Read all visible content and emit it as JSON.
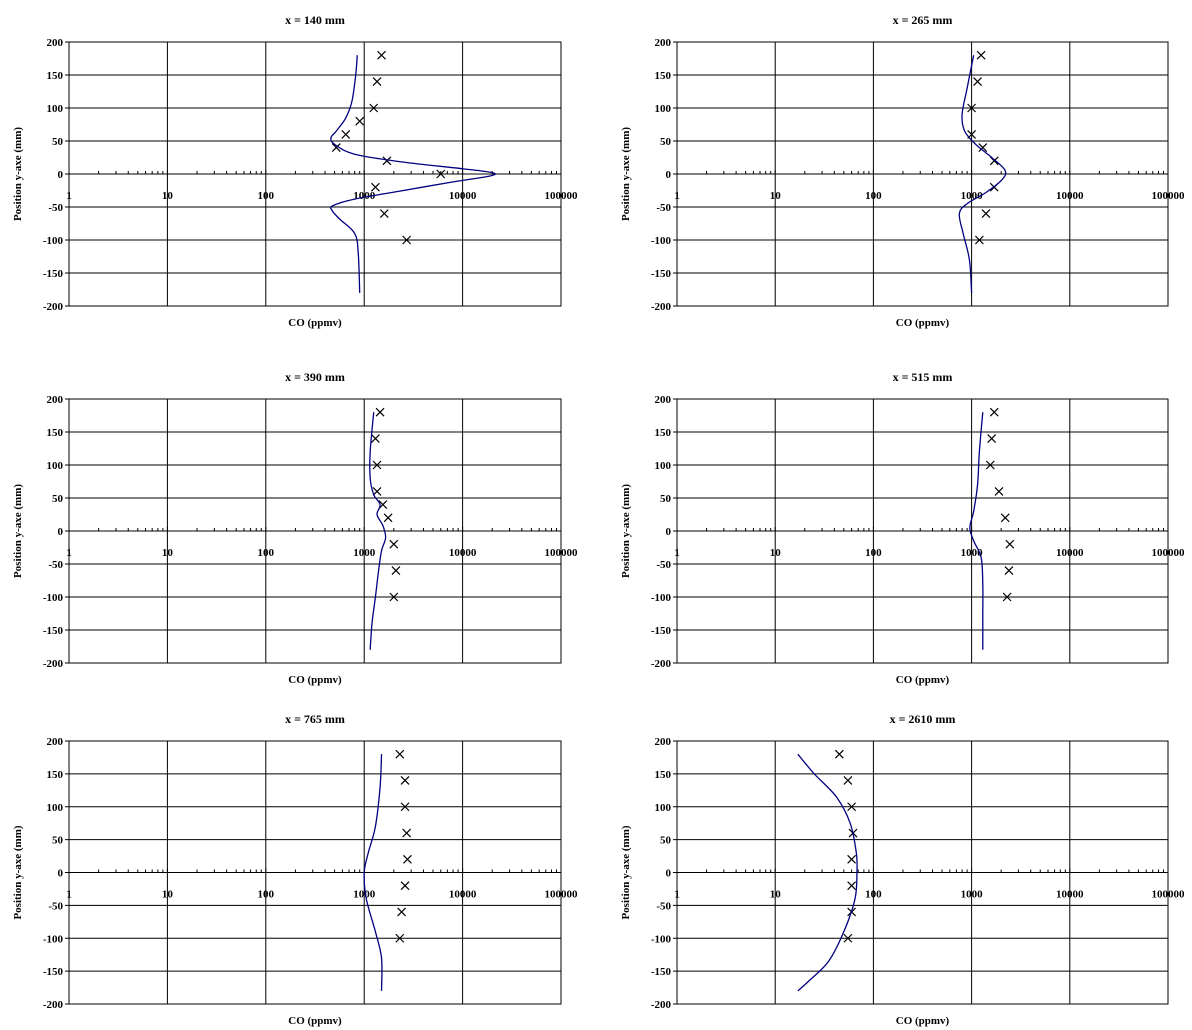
{
  "figure": {
    "xlabel": "CO (ppmv)",
    "ylabel": "Position y-axe (mm)",
    "colors": {
      "model_line": "#000080",
      "marker": "#000000",
      "grid": "#000000"
    }
  },
  "chart_data": [
    {
      "type": "scatter",
      "title": "x = 140 mm",
      "xlabel": "CO (ppmv)",
      "ylabel": "Position y-axe (mm)",
      "xscale": "log",
      "xlim": [
        1,
        100000
      ],
      "ylim": [
        -200,
        200
      ],
      "x_ticks": [
        "1",
        "10",
        "100",
        "1000",
        "10000",
        "100000"
      ],
      "y_ticks": [
        "200",
        "150",
        "100",
        "50",
        "0",
        "-50",
        "-100",
        "-150",
        "-200"
      ],
      "grid": true,
      "series": [
        {
          "mark": "x",
          "points": [
            [
              1500,
              180
            ],
            [
              1350,
              140
            ],
            [
              1250,
              100
            ],
            [
              900,
              80
            ],
            [
              650,
              60
            ],
            [
              520,
              40
            ],
            [
              1700,
              20
            ],
            [
              6000,
              0
            ],
            [
              1300,
              -20
            ],
            [
              1600,
              -60
            ],
            [
              2700,
              -100
            ]
          ]
        },
        {
          "mark": "line",
          "points": [
            [
              850,
              180
            ],
            [
              820,
              150
            ],
            [
              750,
              110
            ],
            [
              650,
              85
            ],
            [
              520,
              65
            ],
            [
              460,
              55
            ],
            [
              500,
              45
            ],
            [
              800,
              30
            ],
            [
              2500,
              18
            ],
            [
              10000,
              8
            ],
            [
              20000,
              2
            ],
            [
              19000,
              -3
            ],
            [
              8000,
              -12
            ],
            [
              2500,
              -25
            ],
            [
              800,
              -38
            ],
            [
              480,
              -48
            ],
            [
              470,
              -55
            ],
            [
              560,
              -68
            ],
            [
              800,
              -90
            ],
            [
              870,
              -120
            ],
            [
              900,
              -180
            ]
          ]
        }
      ]
    },
    {
      "type": "scatter",
      "title": "x = 265 mm",
      "xlabel": "CO (ppmv)",
      "ylabel": "Position y-axe (mm)",
      "xscale": "log",
      "xlim": [
        1,
        100000
      ],
      "ylim": [
        -200,
        200
      ],
      "x_ticks": [
        "1",
        "10",
        "100",
        "1000",
        "10000",
        "100000"
      ],
      "y_ticks": [
        "200",
        "150",
        "100",
        "50",
        "0",
        "-50",
        "-100",
        "-150",
        "-200"
      ],
      "grid": true,
      "series": [
        {
          "mark": "x",
          "points": [
            [
              1250,
              180
            ],
            [
              1150,
              140
            ],
            [
              1000,
              100
            ],
            [
              1000,
              60
            ],
            [
              1300,
              40
            ],
            [
              1700,
              20
            ],
            [
              1700,
              -20
            ],
            [
              1400,
              -60
            ],
            [
              1200,
              -100
            ]
          ]
        },
        {
          "mark": "line",
          "points": [
            [
              1050,
              180
            ],
            [
              900,
              130
            ],
            [
              800,
              90
            ],
            [
              850,
              65
            ],
            [
              1100,
              45
            ],
            [
              1600,
              25
            ],
            [
              2200,
              5
            ],
            [
              2000,
              -10
            ],
            [
              1400,
              -28
            ],
            [
              900,
              -45
            ],
            [
              750,
              -60
            ],
            [
              820,
              -90
            ],
            [
              950,
              -130
            ],
            [
              1000,
              -180
            ]
          ]
        }
      ]
    },
    {
      "type": "scatter",
      "title": "x = 390 mm",
      "xlabel": "CO (ppmv)",
      "ylabel": "Position y-axe (mm)",
      "xscale": "log",
      "xlim": [
        1,
        100000
      ],
      "ylim": [
        -200,
        200
      ],
      "x_ticks": [
        "1",
        "10",
        "100",
        "1000",
        "10000",
        "100000"
      ],
      "y_ticks": [
        "200",
        "150",
        "100",
        "50",
        "0",
        "-50",
        "-100",
        "-150",
        "-200"
      ],
      "grid": true,
      "series": [
        {
          "mark": "x",
          "points": [
            [
              1450,
              180
            ],
            [
              1300,
              140
            ],
            [
              1350,
              100
            ],
            [
              1350,
              60
            ],
            [
              1550,
              40
            ],
            [
              1750,
              20
            ],
            [
              2000,
              -20
            ],
            [
              2100,
              -60
            ],
            [
              2000,
              -100
            ]
          ]
        },
        {
          "mark": "line",
          "points": [
            [
              1250,
              180
            ],
            [
              1150,
              120
            ],
            [
              1150,
              80
            ],
            [
              1250,
              55
            ],
            [
              1450,
              40
            ],
            [
              1350,
              25
            ],
            [
              1550,
              8
            ],
            [
              1650,
              -10
            ],
            [
              1500,
              -30
            ],
            [
              1400,
              -60
            ],
            [
              1300,
              -100
            ],
            [
              1200,
              -140
            ],
            [
              1150,
              -180
            ]
          ]
        }
      ]
    },
    {
      "type": "scatter",
      "title": "x = 515 mm",
      "xlabel": "CO (ppmv)",
      "ylabel": "Position y-axe (mm)",
      "xscale": "log",
      "xlim": [
        1,
        100000
      ],
      "ylim": [
        -200,
        200
      ],
      "x_ticks": [
        "1",
        "10",
        "100",
        "1000",
        "10000",
        "100000"
      ],
      "y_ticks": [
        "200",
        "150",
        "100",
        "50",
        "0",
        "-50",
        "-100",
        "-150",
        "-200"
      ],
      "grid": true,
      "series": [
        {
          "mark": "x",
          "points": [
            [
              1700,
              180
            ],
            [
              1600,
              140
            ],
            [
              1550,
              100
            ],
            [
              1900,
              60
            ],
            [
              2200,
              20
            ],
            [
              2450,
              -20
            ],
            [
              2400,
              -60
            ],
            [
              2300,
              -100
            ]
          ]
        },
        {
          "mark": "line",
          "points": [
            [
              1300,
              180
            ],
            [
              1200,
              120
            ],
            [
              1150,
              70
            ],
            [
              1050,
              30
            ],
            [
              960,
              5
            ],
            [
              1050,
              -15
            ],
            [
              1250,
              -40
            ],
            [
              1300,
              -80
            ],
            [
              1300,
              -130
            ],
            [
              1300,
              -180
            ]
          ]
        }
      ]
    },
    {
      "type": "scatter",
      "title": "x = 765 mm",
      "xlabel": "CO (ppmv)",
      "ylabel": "Position y-axe (mm)",
      "xscale": "log",
      "xlim": [
        1,
        100000
      ],
      "ylim": [
        -200,
        200
      ],
      "x_ticks": [
        "1",
        "10",
        "100",
        "1000",
        "10000",
        "100000"
      ],
      "y_ticks": [
        "200",
        "150",
        "100",
        "50",
        "0",
        "-50",
        "-100",
        "-150",
        "-200"
      ],
      "grid": true,
      "series": [
        {
          "mark": "x",
          "points": [
            [
              2300,
              180
            ],
            [
              2600,
              140
            ],
            [
              2600,
              100
            ],
            [
              2700,
              60
            ],
            [
              2750,
              20
            ],
            [
              2600,
              -20
            ],
            [
              2400,
              -60
            ],
            [
              2300,
              -100
            ]
          ]
        },
        {
          "mark": "line",
          "points": [
            [
              1500,
              180
            ],
            [
              1450,
              130
            ],
            [
              1300,
              70
            ],
            [
              1100,
              30
            ],
            [
              1000,
              0
            ],
            [
              1050,
              -40
            ],
            [
              1300,
              -90
            ],
            [
              1500,
              -130
            ],
            [
              1500,
              -180
            ]
          ]
        }
      ]
    },
    {
      "type": "scatter",
      "title": "x = 2610 mm",
      "xlabel": "CO (ppmv)",
      "ylabel": "Position y-axe (mm)",
      "xscale": "log",
      "xlim": [
        1,
        100000
      ],
      "ylim": [
        -200,
        200
      ],
      "x_ticks": [
        "1",
        "10",
        "100",
        "1000",
        "10000",
        "100000"
      ],
      "y_ticks": [
        "200",
        "150",
        "100",
        "50",
        "0",
        "-50",
        "-100",
        "-150",
        "-200"
      ],
      "grid": true,
      "series": [
        {
          "mark": "x",
          "points": [
            [
              45,
              180
            ],
            [
              55,
              140
            ],
            [
              60,
              100
            ],
            [
              62,
              60
            ],
            [
              60,
              20
            ],
            [
              60,
              -20
            ],
            [
              60,
              -60
            ],
            [
              55,
              -100
            ]
          ]
        },
        {
          "mark": "line",
          "points": [
            [
              17,
              180
            ],
            [
              25,
              150
            ],
            [
              42,
              115
            ],
            [
              58,
              75
            ],
            [
              67,
              30
            ],
            [
              68,
              0
            ],
            [
              65,
              -40
            ],
            [
              50,
              -90
            ],
            [
              35,
              -135
            ],
            [
              22,
              -165
            ],
            [
              17,
              -180
            ]
          ]
        }
      ]
    }
  ]
}
